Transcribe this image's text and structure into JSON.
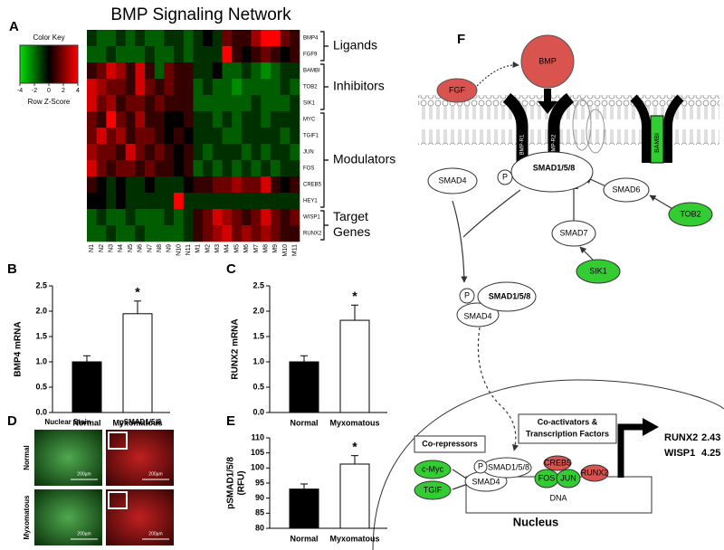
{
  "chart_data": [
    {
      "type": "heatmap",
      "panel": "A",
      "title": "BMP Signaling Network",
      "categories": [
        "N1",
        "N2",
        "N3",
        "N4",
        "N5",
        "N6",
        "N7",
        "N8",
        "N9",
        "N10",
        "N11",
        "M1",
        "M2",
        "M3",
        "M4",
        "M5",
        "M6",
        "M7",
        "M8",
        "M9",
        "M10",
        "M11"
      ],
      "rows": [
        "BMP4",
        "FGF9",
        "BAMBI",
        "TOB2",
        "SIK1",
        "MYC",
        "TGIF1",
        "JUN",
        "FOS",
        "CREB5",
        "HEY1",
        "WISP1",
        "RUNX2"
      ],
      "values": [
        [
          -0.5,
          -1,
          -1,
          -0.5,
          -1,
          -0.5,
          -1,
          -1,
          -0.5,
          -0.5,
          -1,
          -0.5,
          0,
          -0.5,
          1,
          0.5,
          0.5,
          1.5,
          3,
          2.5,
          1,
          0.5
        ],
        [
          -1,
          -1,
          -0.5,
          -1,
          -1,
          -1,
          -0.5,
          -1,
          -1,
          -0.5,
          -1,
          -0.5,
          -0.5,
          -0.5,
          4,
          0.5,
          0,
          0.5,
          1,
          0.5,
          0,
          0.5
        ],
        [
          0.5,
          1,
          2,
          1.5,
          0.5,
          2,
          0.5,
          -1,
          1,
          0.5,
          0.5,
          -0.5,
          -0.5,
          0,
          -1,
          -1,
          -0.5,
          -1,
          -1.5,
          -1,
          -0.5,
          -0.5
        ],
        [
          2,
          1.5,
          1,
          1,
          0.5,
          2,
          1,
          0.5,
          1,
          0.5,
          0.5,
          -1,
          -0.5,
          -1,
          -1,
          -1.5,
          -1,
          -1,
          -1,
          -1,
          -0.5,
          -1
        ],
        [
          2,
          1,
          1.5,
          0.5,
          1,
          1,
          0.5,
          1,
          0.5,
          0.5,
          0.5,
          -1,
          -1,
          -1,
          -1,
          -1,
          -1,
          -0.5,
          -1,
          -1,
          -1,
          -0.5
        ],
        [
          1,
          0.5,
          3,
          1,
          0.5,
          1.5,
          0.5,
          0.5,
          0,
          0,
          0.5,
          -0.5,
          -0.5,
          -1,
          -0.5,
          -1,
          -0.5,
          -0.5,
          -1,
          -0.5,
          -0.5,
          -0.5
        ],
        [
          1,
          2,
          1,
          1.5,
          0.5,
          1,
          1,
          0.5,
          0,
          0.5,
          0,
          -0.5,
          -0.5,
          -0.5,
          -1,
          -1,
          -0.5,
          -0.5,
          -0.5,
          -0.5,
          -1,
          -0.5
        ],
        [
          1.5,
          1,
          1,
          0.5,
          2,
          1,
          0.5,
          1,
          0.5,
          0,
          0.5,
          -0.5,
          -1,
          -0.5,
          -0.5,
          -0.5,
          -1,
          -0.5,
          -1,
          -0.5,
          -0.5,
          -1
        ],
        [
          2,
          1,
          0.5,
          1,
          1,
          0.5,
          1,
          0.5,
          0.5,
          0,
          0.5,
          -1,
          -0.5,
          -1,
          -0.5,
          -1,
          -0.5,
          -1,
          -0.5,
          -1,
          -0.5,
          -0.5
        ],
        [
          0.5,
          0,
          -0.5,
          0,
          -0.5,
          -0.5,
          0,
          -0.5,
          -0.5,
          -0.5,
          0,
          0.5,
          0.5,
          1,
          1,
          1.5,
          1,
          1,
          2,
          0.5,
          0,
          0.5
        ],
        [
          0,
          0,
          -0.5,
          0,
          -0.5,
          -0.5,
          -0.5,
          -0.5,
          -0.5,
          4,
          -0.5,
          -0.5,
          -0.5,
          -0.5,
          -0.5,
          -0.5,
          -0.5,
          -0.5,
          -0.5,
          -0.5,
          -0.5,
          -0.5
        ],
        [
          -1,
          -0.5,
          -1,
          -1,
          -0.5,
          -1,
          -1,
          -1,
          -0.5,
          -1,
          -0.5,
          0.5,
          1,
          2,
          1.5,
          1,
          0.5,
          1,
          2,
          1,
          0.5,
          1
        ],
        [
          -1,
          -1,
          -0.5,
          -1,
          -1,
          -0.5,
          -1,
          -1,
          -1,
          -1,
          -0.5,
          0.5,
          1,
          1.5,
          2,
          1,
          1.5,
          1,
          1.5,
          1,
          0.5,
          0.5
        ]
      ],
      "colors": [
        "#00e000",
        "#000000",
        "#ff0000"
      ],
      "clim": [
        -4,
        4
      ],
      "cticks": [
        -4,
        -2,
        0,
        2,
        4
      ],
      "color_key_title": "Color Key",
      "color_key_label": "Row Z-Score",
      "groups": [
        "Ligands",
        "Inhibitors",
        "Modulators",
        [
          "Target",
          "Genes"
        ]
      ]
    },
    {
      "type": "bar",
      "panel": "B",
      "ylabel": "BMP4 mRNA",
      "categories": [
        "Normal",
        "Myxomatous"
      ],
      "values": [
        1.0,
        1.95
      ],
      "errors": [
        0.12,
        0.25
      ],
      "colors": [
        "#000000",
        "#ffffff"
      ],
      "ylim": [
        0,
        2.5
      ],
      "yticks": [
        {
          "value": 0,
          "label": "0.0"
        },
        0.5,
        {
          "value": 1,
          "label": "1.0"
        },
        1.5,
        {
          "value": 2,
          "label": "2.0"
        },
        2.5
      ],
      "annotation": "*"
    },
    {
      "type": "bar",
      "panel": "C",
      "ylabel": "RUNX2 mRNA",
      "categories": [
        "Normal",
        "Myxomatous"
      ],
      "values": [
        1.0,
        1.82
      ],
      "errors": [
        0.12,
        0.3
      ],
      "colors": [
        "#000000",
        "#ffffff"
      ],
      "ylim": [
        0,
        2.5
      ],
      "yticks": [
        {
          "value": 0,
          "label": "0.0"
        },
        0.5,
        {
          "value": 1,
          "label": "1.0"
        },
        1.5,
        {
          "value": 2,
          "label": "2.0"
        },
        2.5
      ],
      "annotation": "*"
    },
    {
      "type": "bar",
      "panel": "E",
      "ylabel": [
        "pSMAD1/5/8",
        "(RFU)"
      ],
      "categories": [
        "Normal",
        "Myxomatous"
      ],
      "values": [
        93,
        101.3
      ],
      "errors": [
        1.7,
        2.8
      ],
      "colors": [
        "#000000",
        "#ffffff"
      ],
      "ylim": [
        80,
        110
      ],
      "yticks": [
        80,
        85,
        90,
        95,
        100,
        105,
        110
      ],
      "annotation": "*"
    }
  ],
  "micrographs": {
    "panel": "D",
    "columns": [
      "Nuclear Stain",
      "pSMAD1/5/8"
    ],
    "rows": [
      "Normal",
      "Myxomatous"
    ],
    "scale": "200µm"
  },
  "diagram": {
    "panel": "F",
    "bmp": "BMP",
    "fgf": "FGF",
    "receptors": [
      "BMP-R1",
      "BMP-R2"
    ],
    "bambi": "BAMBI",
    "smad4": "SMAD4",
    "phospho": "P",
    "smad158": "SMAD1/5/8",
    "smad6": "SMAD6",
    "tob2": "TOB2",
    "smad7": "SMAD7",
    "sik1": "SIK1",
    "complex": [
      "P",
      "SMAD1/5/8",
      "SMAD4"
    ],
    "nucleus": "Nucleus",
    "corepressors": "Co-repressors",
    "coactivators": [
      "Co-activators &",
      "Transcription Factors"
    ],
    "nuclear_factors": [
      "c-Myc",
      "TGIF",
      "P",
      "SMAD1/5/8",
      "SMAD4",
      "CREB5",
      "FOS",
      "JUN",
      "RUNX2"
    ],
    "dna": "DNA",
    "targets": [
      {
        "gene": "RUNX2",
        "fold": 2.43
      },
      {
        "gene": "WISP1",
        "fold": 4.25
      }
    ]
  }
}
